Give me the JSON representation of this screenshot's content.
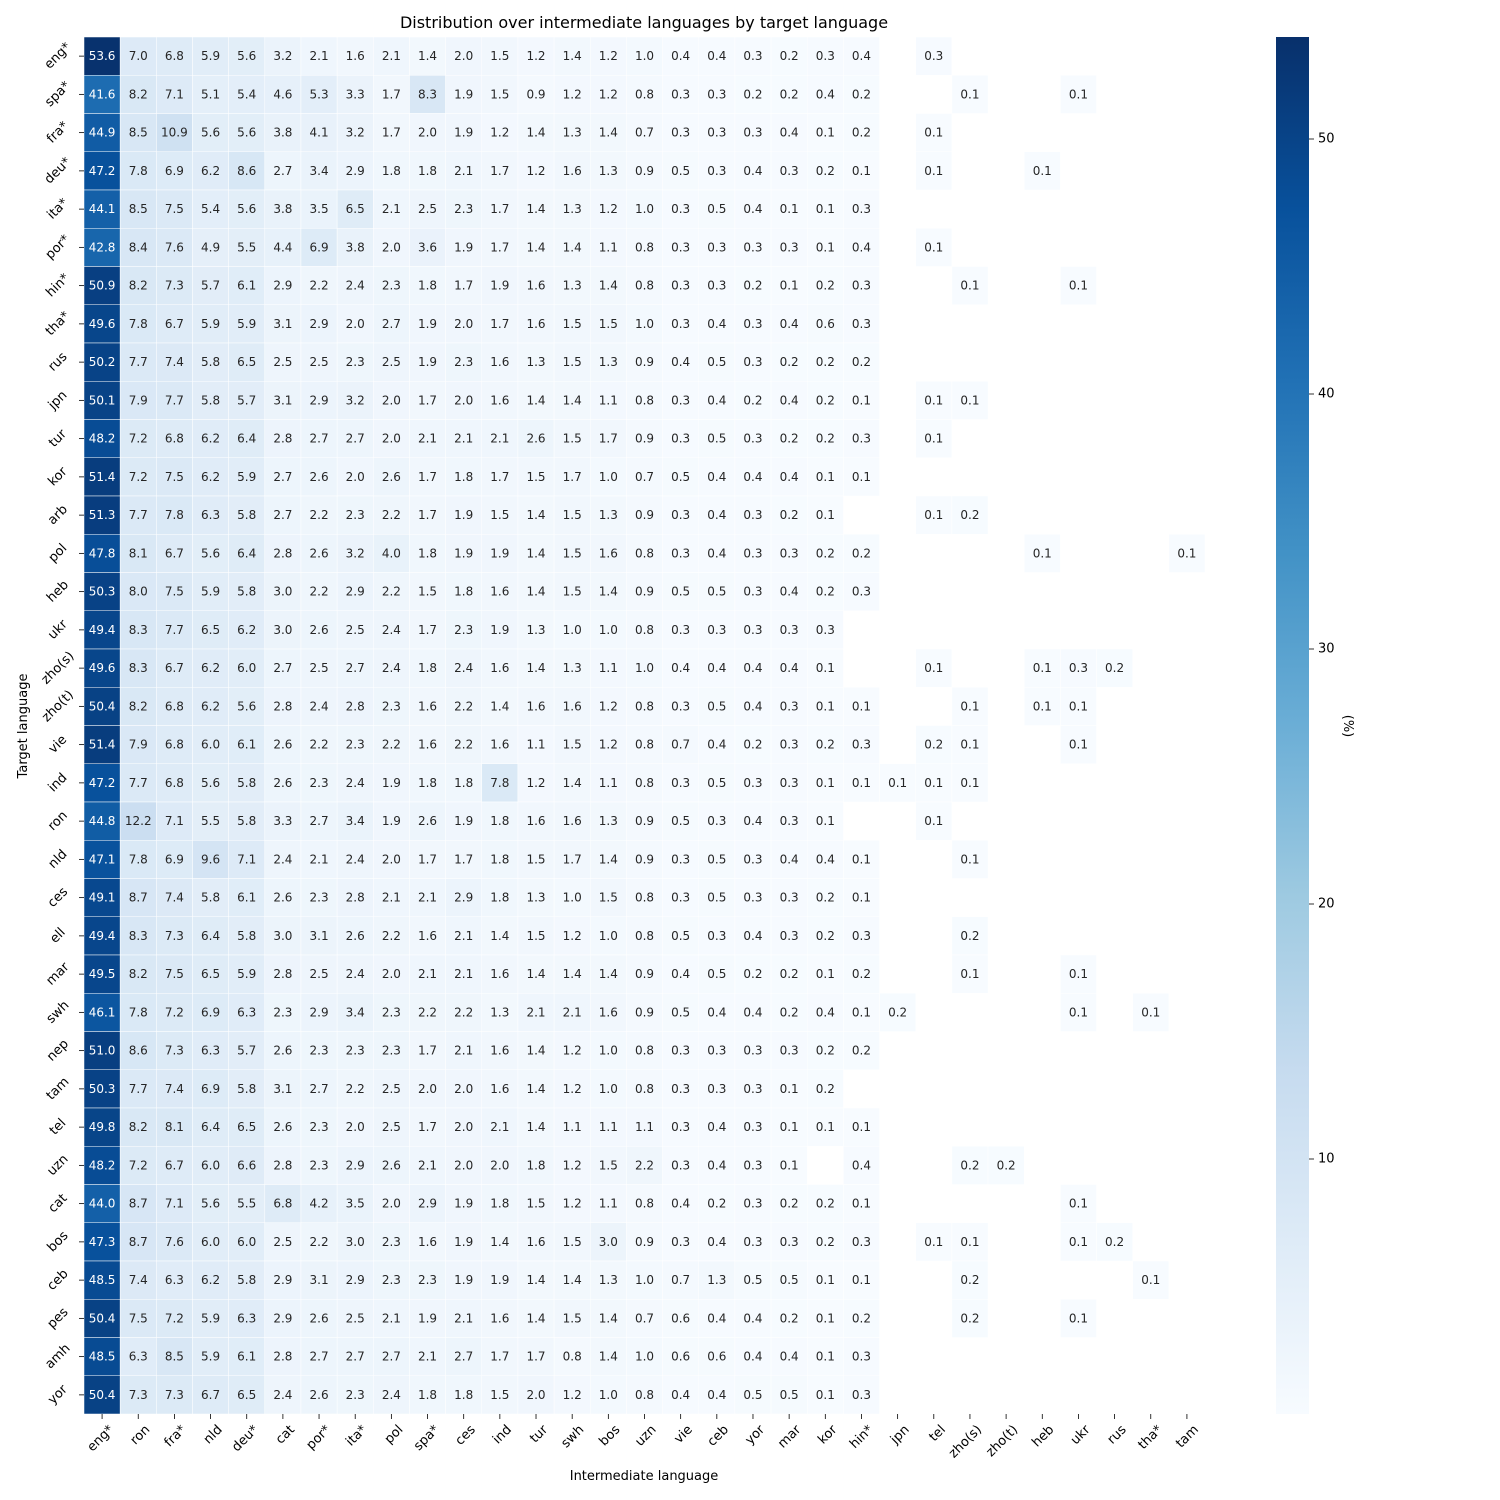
{
  "chart_data": {
    "type": "heatmap",
    "title": "Distribution over intermediate languages by target language",
    "xlabel": "Intermediate language",
    "ylabel": "Target language",
    "colorbar_label": "(%)",
    "colorbar_ticks": [
      10,
      20,
      30,
      40,
      50
    ],
    "value_range": [
      0,
      54
    ],
    "colormap": [
      "#f7fbff",
      "#deebf7",
      "#c6dbef",
      "#9ecae1",
      "#6baed6",
      "#4292c6",
      "#2171b5",
      "#08519c",
      "#08306b"
    ],
    "x_categories": [
      "eng*",
      "ron",
      "fra*",
      "nld",
      "deu*",
      "cat",
      "por*",
      "ita*",
      "pol",
      "spa*",
      "ces",
      "ind",
      "tur",
      "swh",
      "bos",
      "uzn",
      "vie",
      "ceb",
      "yor",
      "mar",
      "kor",
      "hin*",
      "jpn",
      "tel",
      "zho(s)",
      "zho(t)",
      "heb",
      "ukr",
      "rus",
      "tha*",
      "tam"
    ],
    "y_categories": [
      "eng*",
      "spa*",
      "fra*",
      "deu*",
      "ita*",
      "por*",
      "hin*",
      "tha*",
      "rus",
      "jpn",
      "tur",
      "kor",
      "arb",
      "pol",
      "heb",
      "ukr",
      "zho(s)",
      "zho(t)",
      "vie",
      "ind",
      "ron",
      "nld",
      "ces",
      "ell",
      "mar",
      "swh",
      "nep",
      "tam",
      "tel",
      "uzn",
      "cat",
      "bos",
      "ceb",
      "pes",
      "amh",
      "yor"
    ],
    "values": [
      [
        53.6,
        7.0,
        6.8,
        5.9,
        5.6,
        3.2,
        2.1,
        1.6,
        2.1,
        1.4,
        2.0,
        1.5,
        1.2,
        1.4,
        1.2,
        1.0,
        0.4,
        0.4,
        0.3,
        0.2,
        0.3,
        0.4,
        null,
        0.3,
        null,
        null,
        null,
        null,
        null,
        null,
        null
      ],
      [
        41.6,
        8.2,
        7.1,
        5.1,
        5.4,
        4.6,
        5.3,
        3.3,
        1.7,
        8.3,
        1.9,
        1.5,
        0.9,
        1.2,
        1.2,
        0.8,
        0.3,
        0.3,
        0.2,
        0.2,
        0.4,
        0.2,
        null,
        null,
        0.1,
        null,
        null,
        0.1,
        null,
        null,
        null
      ],
      [
        44.9,
        8.5,
        10.9,
        5.6,
        5.6,
        3.8,
        4.1,
        3.2,
        1.7,
        2.0,
        1.9,
        1.2,
        1.4,
        1.3,
        1.4,
        0.7,
        0.3,
        0.3,
        0.3,
        0.4,
        0.1,
        0.2,
        null,
        0.1,
        null,
        null,
        null,
        null,
        null,
        null,
        null
      ],
      [
        47.2,
        7.8,
        6.9,
        6.2,
        8.6,
        2.7,
        3.4,
        2.9,
        1.8,
        1.8,
        2.1,
        1.7,
        1.2,
        1.6,
        1.3,
        0.9,
        0.5,
        0.3,
        0.4,
        0.3,
        0.2,
        0.1,
        null,
        0.1,
        null,
        null,
        0.1,
        null,
        null,
        null,
        null
      ],
      [
        44.1,
        8.5,
        7.5,
        5.4,
        5.6,
        3.8,
        3.5,
        6.5,
        2.1,
        2.5,
        2.3,
        1.7,
        1.4,
        1.3,
        1.2,
        1.0,
        0.3,
        0.5,
        0.4,
        0.1,
        0.1,
        0.3,
        null,
        null,
        null,
        null,
        null,
        null,
        null,
        null,
        null
      ],
      [
        42.8,
        8.4,
        7.6,
        4.9,
        5.5,
        4.4,
        6.9,
        3.8,
        2.0,
        3.6,
        1.9,
        1.7,
        1.4,
        1.4,
        1.1,
        0.8,
        0.3,
        0.3,
        0.3,
        0.3,
        0.1,
        0.4,
        null,
        0.1,
        null,
        null,
        null,
        null,
        null,
        null,
        null
      ],
      [
        50.9,
        8.2,
        7.3,
        5.7,
        6.1,
        2.9,
        2.2,
        2.4,
        2.3,
        1.8,
        1.7,
        1.9,
        1.6,
        1.3,
        1.4,
        0.8,
        0.3,
        0.3,
        0.2,
        0.1,
        0.2,
        0.3,
        null,
        null,
        0.1,
        null,
        null,
        0.1,
        null,
        null,
        null
      ],
      [
        49.6,
        7.8,
        6.7,
        5.9,
        5.9,
        3.1,
        2.9,
        2.0,
        2.7,
        1.9,
        2.0,
        1.7,
        1.6,
        1.5,
        1.5,
        1.0,
        0.3,
        0.4,
        0.3,
        0.4,
        0.6,
        0.3,
        null,
        null,
        null,
        null,
        null,
        null,
        null,
        null,
        null
      ],
      [
        50.2,
        7.7,
        7.4,
        5.8,
        6.5,
        2.5,
        2.5,
        2.3,
        2.5,
        1.9,
        2.3,
        1.6,
        1.3,
        1.5,
        1.3,
        0.9,
        0.4,
        0.5,
        0.3,
        0.2,
        0.2,
        0.2,
        null,
        null,
        null,
        null,
        null,
        null,
        null,
        null,
        null
      ],
      [
        50.1,
        7.9,
        7.7,
        5.8,
        5.7,
        3.1,
        2.9,
        3.2,
        2.0,
        1.7,
        2.0,
        1.6,
        1.4,
        1.4,
        1.1,
        0.8,
        0.3,
        0.4,
        0.2,
        0.4,
        0.2,
        0.1,
        null,
        0.1,
        0.1,
        null,
        null,
        null,
        null,
        null,
        null
      ],
      [
        48.2,
        7.2,
        6.8,
        6.2,
        6.4,
        2.8,
        2.7,
        2.7,
        2.0,
        2.1,
        2.1,
        2.1,
        2.6,
        1.5,
        1.7,
        0.9,
        0.3,
        0.5,
        0.3,
        0.2,
        0.2,
        0.3,
        null,
        0.1,
        null,
        null,
        null,
        null,
        null,
        null,
        null
      ],
      [
        51.4,
        7.2,
        7.5,
        6.2,
        5.9,
        2.7,
        2.6,
        2.0,
        2.6,
        1.7,
        1.8,
        1.7,
        1.5,
        1.7,
        1.0,
        0.7,
        0.5,
        0.4,
        0.4,
        0.4,
        0.1,
        0.1,
        null,
        null,
        null,
        null,
        null,
        null,
        null,
        null,
        null
      ],
      [
        51.3,
        7.7,
        7.8,
        6.3,
        5.8,
        2.7,
        2.2,
        2.3,
        2.2,
        1.7,
        1.9,
        1.5,
        1.4,
        1.5,
        1.3,
        0.9,
        0.3,
        0.4,
        0.3,
        0.2,
        0.1,
        null,
        null,
        0.1,
        0.2,
        null,
        null,
        null,
        null,
        null,
        null
      ],
      [
        47.8,
        8.1,
        6.7,
        5.6,
        6.4,
        2.8,
        2.6,
        3.2,
        4.0,
        1.8,
        1.9,
        1.9,
        1.4,
        1.5,
        1.6,
        0.8,
        0.3,
        0.4,
        0.3,
        0.3,
        0.2,
        0.2,
        null,
        null,
        null,
        null,
        0.1,
        null,
        null,
        null,
        0.1
      ],
      [
        50.3,
        8.0,
        7.5,
        5.9,
        5.8,
        3.0,
        2.2,
        2.9,
        2.2,
        1.5,
        1.8,
        1.6,
        1.4,
        1.5,
        1.4,
        0.9,
        0.5,
        0.5,
        0.3,
        0.4,
        0.2,
        0.3,
        null,
        null,
        null,
        null,
        null,
        null,
        null,
        null,
        null
      ],
      [
        49.4,
        8.3,
        7.7,
        6.5,
        6.2,
        3.0,
        2.6,
        2.5,
        2.4,
        1.7,
        2.3,
        1.9,
        1.3,
        1.0,
        1.0,
        0.8,
        0.3,
        0.3,
        0.3,
        0.3,
        0.3,
        null,
        null,
        null,
        null,
        null,
        null,
        null,
        null,
        null,
        null
      ],
      [
        49.6,
        8.3,
        6.7,
        6.2,
        6.0,
        2.7,
        2.5,
        2.7,
        2.4,
        1.8,
        2.4,
        1.6,
        1.4,
        1.3,
        1.1,
        1.0,
        0.4,
        0.4,
        0.4,
        0.4,
        0.1,
        null,
        null,
        0.1,
        null,
        null,
        0.1,
        0.3,
        0.2,
        null,
        null
      ],
      [
        50.4,
        8.2,
        6.8,
        6.2,
        5.6,
        2.8,
        2.4,
        2.8,
        2.3,
        1.6,
        2.2,
        1.4,
        1.6,
        1.6,
        1.2,
        0.8,
        0.3,
        0.5,
        0.4,
        0.3,
        0.1,
        0.1,
        null,
        null,
        0.1,
        null,
        0.1,
        0.1,
        null,
        null,
        null
      ],
      [
        51.4,
        7.9,
        6.8,
        6.0,
        6.1,
        2.6,
        2.2,
        2.3,
        2.2,
        1.6,
        2.2,
        1.6,
        1.1,
        1.5,
        1.2,
        0.8,
        0.7,
        0.4,
        0.2,
        0.3,
        0.2,
        0.3,
        null,
        0.2,
        0.1,
        null,
        null,
        0.1,
        null,
        null,
        null
      ],
      [
        47.2,
        7.7,
        6.8,
        5.6,
        5.8,
        2.6,
        2.3,
        2.4,
        1.9,
        1.8,
        1.8,
        7.8,
        1.2,
        1.4,
        1.1,
        0.8,
        0.3,
        0.5,
        0.3,
        0.3,
        0.1,
        0.1,
        0.1,
        0.1,
        0.1,
        null,
        null,
        null,
        null,
        null,
        null
      ],
      [
        44.8,
        12.2,
        7.1,
        5.5,
        5.8,
        3.3,
        2.7,
        3.4,
        1.9,
        2.6,
        1.9,
        1.8,
        1.6,
        1.6,
        1.3,
        0.9,
        0.5,
        0.3,
        0.4,
        0.3,
        0.1,
        null,
        null,
        0.1,
        null,
        null,
        null,
        null,
        null,
        null,
        null
      ],
      [
        47.1,
        7.8,
        6.9,
        9.6,
        7.1,
        2.4,
        2.1,
        2.4,
        2.0,
        1.7,
        1.7,
        1.8,
        1.5,
        1.7,
        1.4,
        0.9,
        0.3,
        0.5,
        0.3,
        0.4,
        0.4,
        0.1,
        null,
        null,
        0.1,
        null,
        null,
        null,
        null,
        null,
        null
      ],
      [
        49.1,
        8.7,
        7.4,
        5.8,
        6.1,
        2.6,
        2.3,
        2.8,
        2.1,
        2.1,
        2.9,
        1.8,
        1.3,
        1.0,
        1.5,
        0.8,
        0.3,
        0.5,
        0.3,
        0.3,
        0.2,
        0.1,
        null,
        null,
        null,
        null,
        null,
        null,
        null,
        null,
        null
      ],
      [
        49.4,
        8.3,
        7.3,
        6.4,
        5.8,
        3.0,
        3.1,
        2.6,
        2.2,
        1.6,
        2.1,
        1.4,
        1.5,
        1.2,
        1.0,
        0.8,
        0.5,
        0.3,
        0.4,
        0.3,
        0.2,
        0.3,
        null,
        null,
        0.2,
        null,
        null,
        null,
        null,
        null,
        null
      ],
      [
        49.5,
        8.2,
        7.5,
        6.5,
        5.9,
        2.8,
        2.5,
        2.4,
        2.0,
        2.1,
        2.1,
        1.6,
        1.4,
        1.4,
        1.4,
        0.9,
        0.4,
        0.5,
        0.2,
        0.2,
        0.1,
        0.2,
        null,
        null,
        0.1,
        null,
        null,
        0.1,
        null,
        null,
        null
      ],
      [
        46.1,
        7.8,
        7.2,
        6.9,
        6.3,
        2.3,
        2.9,
        3.4,
        2.3,
        2.2,
        2.2,
        1.3,
        2.1,
        2.1,
        1.6,
        0.9,
        0.5,
        0.4,
        0.4,
        0.2,
        0.4,
        0.1,
        0.2,
        null,
        null,
        null,
        null,
        0.1,
        null,
        0.1,
        null
      ],
      [
        51.0,
        8.6,
        7.3,
        6.3,
        5.7,
        2.6,
        2.3,
        2.3,
        2.3,
        1.7,
        2.1,
        1.6,
        1.4,
        1.2,
        1.0,
        0.8,
        0.3,
        0.3,
        0.3,
        0.3,
        0.2,
        0.2,
        null,
        null,
        null,
        null,
        null,
        null,
        null,
        null,
        null
      ],
      [
        50.3,
        7.7,
        7.4,
        6.9,
        5.8,
        3.1,
        2.7,
        2.2,
        2.5,
        2.0,
        2.0,
        1.6,
        1.4,
        1.2,
        1.0,
        0.8,
        0.3,
        0.3,
        0.3,
        0.1,
        0.2,
        null,
        null,
        null,
        null,
        null,
        null,
        null,
        null,
        null,
        null
      ],
      [
        49.8,
        8.2,
        8.1,
        6.4,
        6.5,
        2.6,
        2.3,
        2.0,
        2.5,
        1.7,
        2.0,
        2.1,
        1.4,
        1.1,
        1.1,
        1.1,
        0.3,
        0.4,
        0.3,
        0.1,
        0.1,
        0.1,
        null,
        null,
        null,
        null,
        null,
        null,
        null,
        null,
        null
      ],
      [
        48.2,
        7.2,
        6.7,
        6.0,
        6.6,
        2.8,
        2.3,
        2.9,
        2.6,
        2.1,
        2.0,
        2.0,
        1.8,
        1.2,
        1.5,
        2.2,
        0.3,
        0.4,
        0.3,
        0.1,
        null,
        0.4,
        null,
        null,
        0.2,
        0.2,
        null,
        null,
        null,
        null,
        null
      ],
      [
        44.0,
        8.7,
        7.1,
        5.6,
        5.5,
        6.8,
        4.2,
        3.5,
        2.0,
        2.9,
        1.9,
        1.8,
        1.5,
        1.2,
        1.1,
        0.8,
        0.4,
        0.2,
        0.3,
        0.2,
        0.2,
        0.1,
        null,
        null,
        null,
        null,
        null,
        0.1,
        null,
        null,
        null
      ],
      [
        47.3,
        8.7,
        7.6,
        6.0,
        6.0,
        2.5,
        2.2,
        3.0,
        2.3,
        1.6,
        1.9,
        1.4,
        1.6,
        1.5,
        3.0,
        0.9,
        0.3,
        0.4,
        0.3,
        0.3,
        0.2,
        0.3,
        null,
        0.1,
        0.1,
        null,
        null,
        0.1,
        0.2,
        null,
        null
      ],
      [
        48.5,
        7.4,
        6.3,
        6.2,
        5.8,
        2.9,
        3.1,
        2.9,
        2.3,
        2.3,
        1.9,
        1.9,
        1.4,
        1.4,
        1.3,
        1.0,
        0.7,
        1.3,
        0.5,
        0.5,
        0.1,
        0.1,
        null,
        null,
        0.2,
        null,
        null,
        null,
        null,
        0.1,
        null
      ],
      [
        50.4,
        7.5,
        7.2,
        5.9,
        6.3,
        2.9,
        2.6,
        2.5,
        2.1,
        1.9,
        2.1,
        1.6,
        1.4,
        1.5,
        1.4,
        0.7,
        0.6,
        0.4,
        0.4,
        0.2,
        0.1,
        0.2,
        null,
        null,
        0.2,
        null,
        null,
        0.1,
        null,
        null,
        null
      ],
      [
        48.5,
        6.3,
        8.5,
        5.9,
        6.1,
        2.8,
        2.7,
        2.7,
        2.7,
        2.1,
        2.7,
        1.7,
        1.7,
        0.8,
        1.4,
        1.0,
        0.6,
        0.6,
        0.4,
        0.4,
        0.1,
        0.3,
        null,
        null,
        null,
        null,
        null,
        null,
        null,
        null,
        null
      ],
      [
        50.4,
        7.3,
        7.3,
        6.7,
        6.5,
        2.4,
        2.6,
        2.3,
        2.4,
        1.8,
        1.8,
        1.5,
        2.0,
        1.2,
        1.0,
        0.8,
        0.4,
        0.4,
        0.5,
        0.5,
        0.1,
        0.3,
        null,
        null,
        null,
        null,
        null,
        null,
        null,
        null,
        null
      ]
    ]
  }
}
